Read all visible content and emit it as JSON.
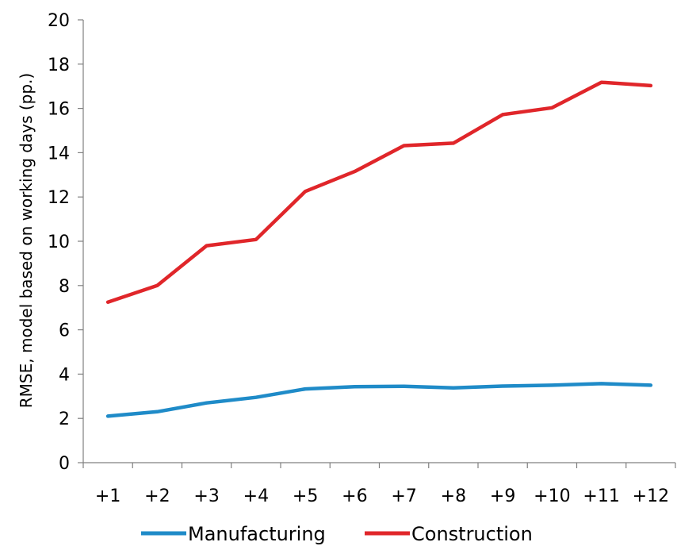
{
  "chart_data": {
    "type": "line",
    "categories": [
      "+1",
      "+2",
      "+3",
      "+4",
      "+5",
      "+6",
      "+7",
      "+8",
      "+9",
      "+10",
      "+11",
      "+12"
    ],
    "series": [
      {
        "name": "Manufacturing",
        "color": "#1f8bc8",
        "values": [
          2.1,
          2.3,
          2.7,
          2.95,
          3.33,
          3.43,
          3.45,
          3.38,
          3.46,
          3.5,
          3.57,
          3.5
        ]
      },
      {
        "name": "Construction",
        "color": "#e0262a",
        "values": [
          7.25,
          8.0,
          9.8,
          10.08,
          12.25,
          13.15,
          14.32,
          14.43,
          15.72,
          16.03,
          17.18,
          17.03
        ]
      }
    ],
    "ylabel": "RMSE, model based on working days (pp.)",
    "xlabel": "",
    "title": "",
    "ylim": [
      0,
      20
    ],
    "yticks": [
      "0",
      "2",
      "4",
      "6",
      "8",
      "10",
      "12",
      "14",
      "16",
      "18",
      "20"
    ],
    "grid": false,
    "legend_position": "bottom"
  }
}
